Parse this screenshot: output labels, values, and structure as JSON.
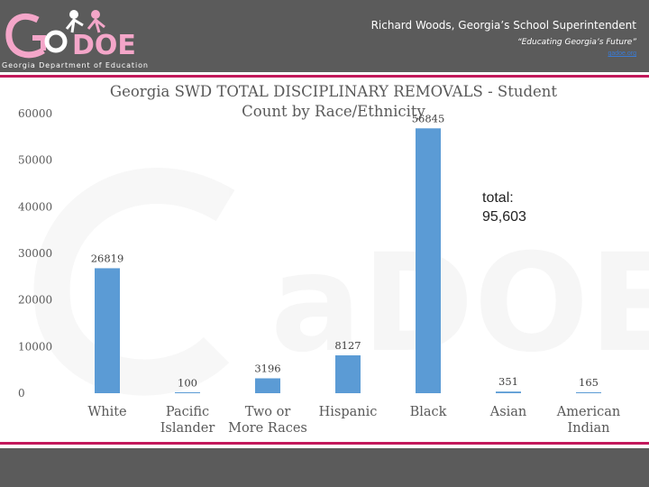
{
  "header": {
    "logo_text": "GaDOE",
    "logo_strip": "Georgia Department of Education",
    "superintendent": "Richard Woods, Georgia’s School Superintendent",
    "tagline": "“Educating Georgia’s Future”",
    "link_text": "gadoe.org"
  },
  "colors": {
    "bar": "#5b9bd5",
    "accent_rule": "#c2185b",
    "header_bg": "#5b5b5b"
  },
  "annotation": {
    "total_line1": "total:",
    "total_line2": "95,603"
  },
  "chart_data": {
    "type": "bar",
    "title_line1": "Georgia SWD TOTAL DISCIPLINARY REMOVALS -  Student",
    "title_line2": "Count by Race/Ethnicity",
    "categories": [
      [
        "White"
      ],
      [
        "Pacific",
        "Islander"
      ],
      [
        "Two or",
        "More Races"
      ],
      [
        "Hispanic"
      ],
      [
        "Black"
      ],
      [
        "Asian"
      ],
      [
        "American",
        "Indian"
      ]
    ],
    "values": [
      26819,
      100,
      3196,
      8127,
      56845,
      351,
      165
    ],
    "data_labels": [
      "26819",
      "100",
      "3196",
      "8127",
      "56845",
      "351",
      "165"
    ],
    "ylim": [
      0,
      60000
    ],
    "yticks": [
      "0",
      "10000",
      "20000",
      "30000",
      "40000",
      "50000",
      "60000"
    ],
    "xlabel": "",
    "ylabel": "",
    "grid": false,
    "legend": "none"
  }
}
